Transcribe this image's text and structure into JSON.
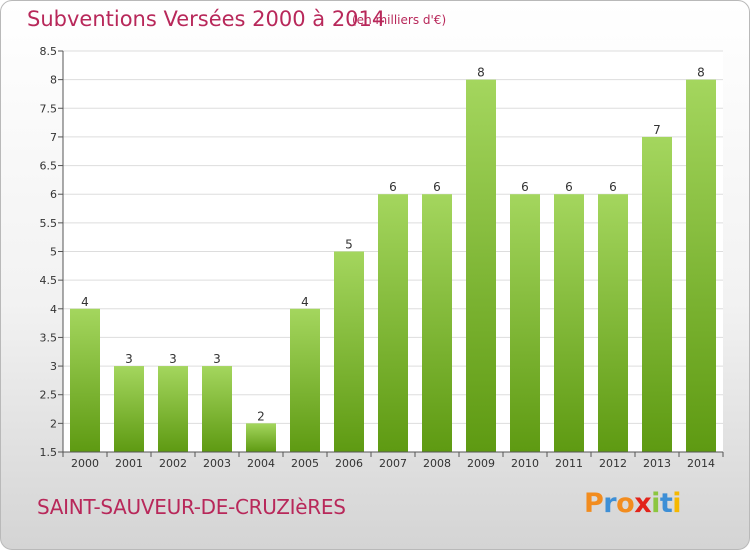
{
  "title": "Subventions Versées 2000 à 2014",
  "subtitle": "(en milliers d'€)",
  "commune": "SAINT-SAUVEUR-DE-CRUZIèRES",
  "logo": {
    "letters": [
      "P",
      "r",
      "o",
      "x",
      "i",
      "t",
      "i"
    ],
    "colors": [
      "#f28c1e",
      "#3d8fd6",
      "#f28c1e",
      "#e2231a",
      "#8cc63f",
      "#3d8fd6",
      "#f5b800"
    ]
  },
  "colors": {
    "accent": "#b8285a",
    "bar_light": "#a4d65e",
    "bar_dark": "#5e9a12"
  },
  "chart_data": {
    "type": "bar",
    "title": "Subventions Versées 2000 à 2014",
    "subtitle": "(en milliers d'€)",
    "categories": [
      "2000",
      "2001",
      "2002",
      "2003",
      "2004",
      "2005",
      "2006",
      "2007",
      "2008",
      "2009",
      "2010",
      "2011",
      "2012",
      "2013",
      "2014"
    ],
    "values": [
      4,
      3,
      3,
      3,
      2,
      4,
      5,
      6,
      6,
      8,
      6,
      6,
      6,
      7,
      8
    ],
    "ylim": [
      1.5,
      8.5
    ],
    "yticks": [
      "1.5",
      "2",
      "2.5",
      "3",
      "3.5",
      "4",
      "4.5",
      "5",
      "5.5",
      "6",
      "6.5",
      "7",
      "7.5",
      "8",
      "8.5"
    ],
    "grid": true,
    "data_labels": true
  }
}
